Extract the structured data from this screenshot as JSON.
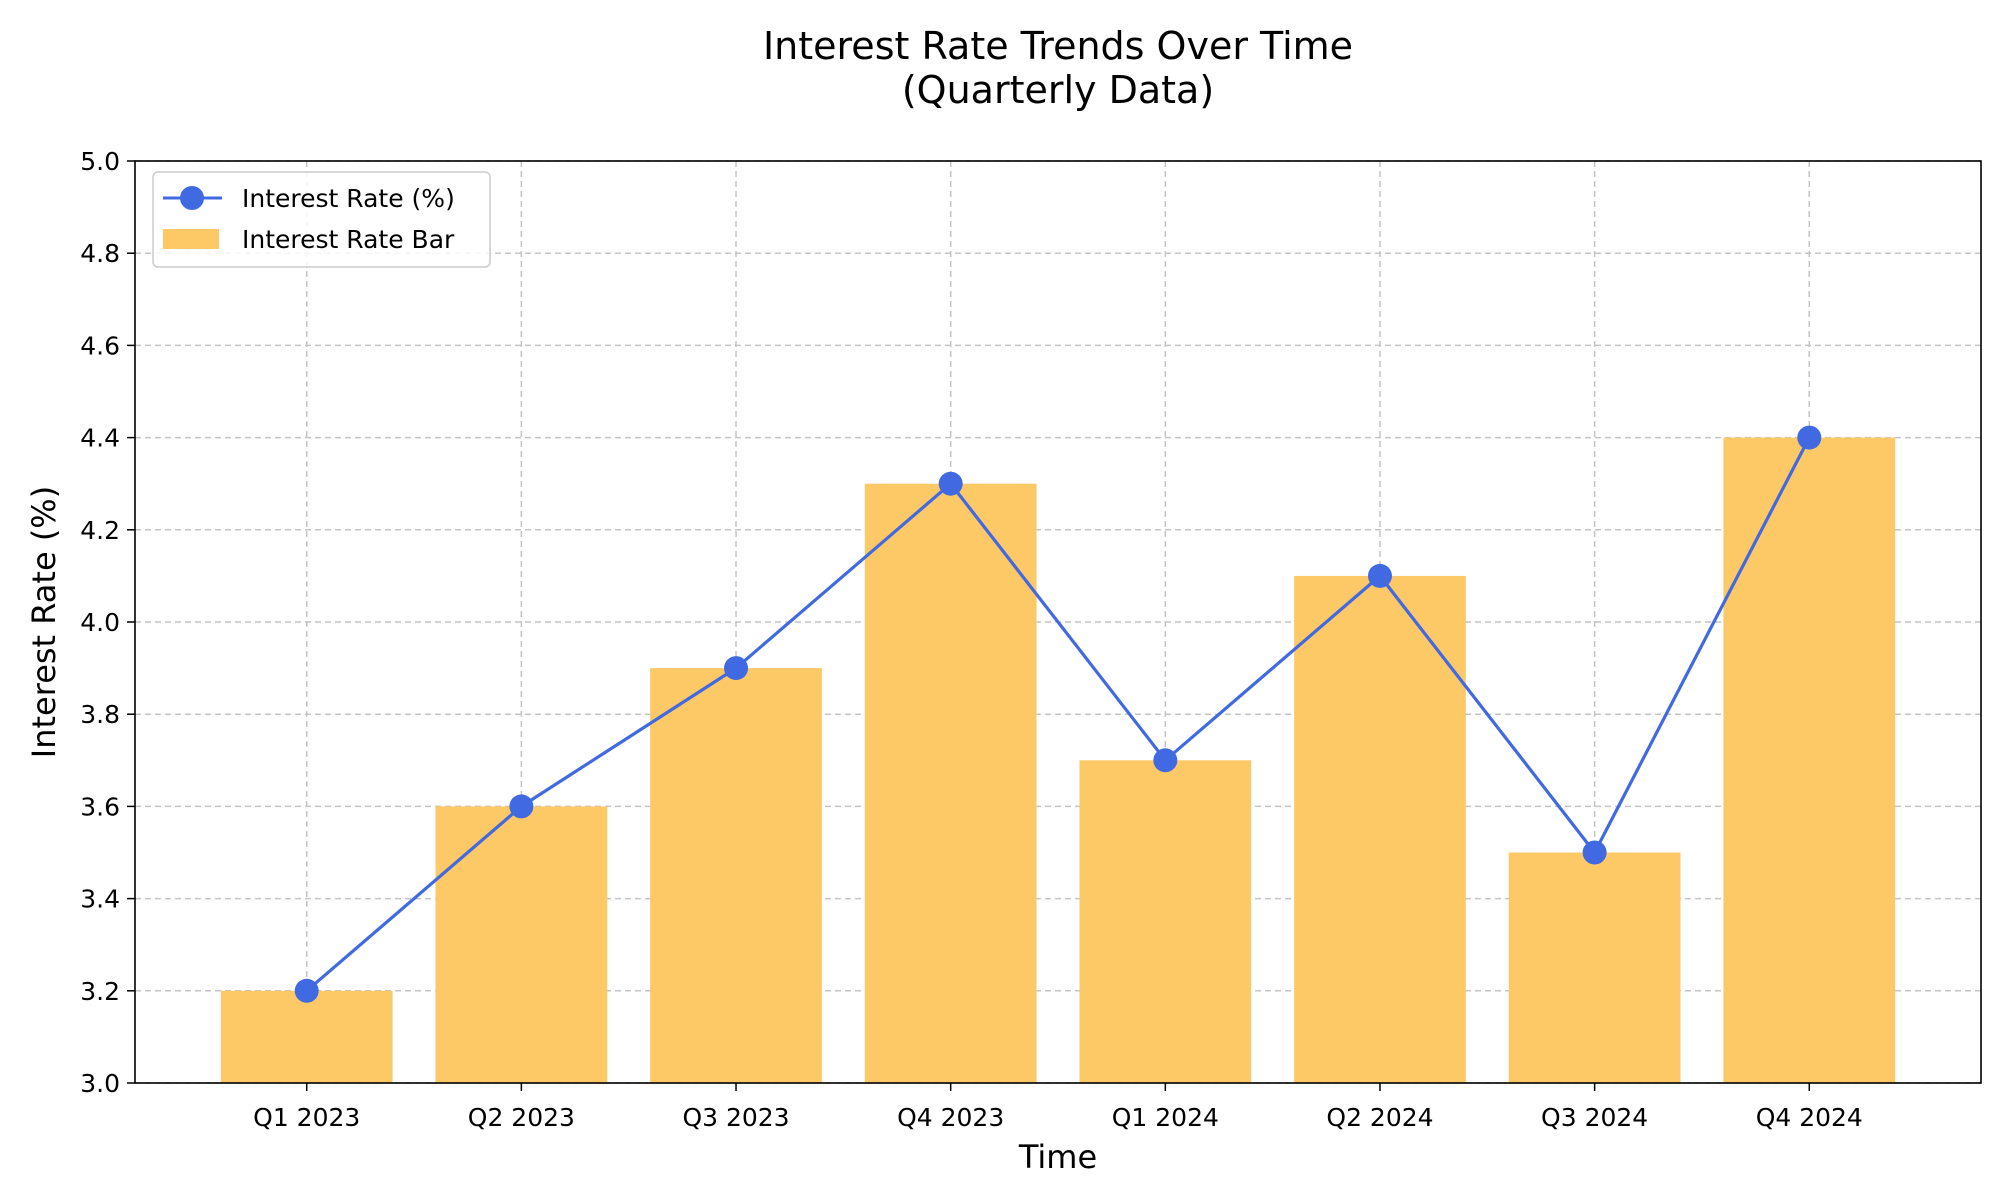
{
  "chart_data": {
    "type": "bar",
    "title": "Interest Rate Trends Over Time",
    "subtitle": "(Quarterly Data)",
    "xlabel": "Time",
    "ylabel": "Interest Rate (%)",
    "categories": [
      "Q1 2023",
      "Q2 2023",
      "Q3 2023",
      "Q4 2023",
      "Q1 2024",
      "Q2 2024",
      "Q3 2024",
      "Q4 2024"
    ],
    "series": [
      {
        "name": "Interest Rate (%)",
        "kind": "line",
        "values": [
          3.2,
          3.6,
          3.9,
          4.3,
          3.7,
          4.1,
          3.5,
          4.4
        ]
      },
      {
        "name": "Interest Rate Bar",
        "kind": "bar",
        "values": [
          3.2,
          3.6,
          3.9,
          4.3,
          3.7,
          4.1,
          3.5,
          4.4
        ]
      }
    ],
    "ylim": [
      3.0,
      5.0
    ],
    "yticks": [
      3.0,
      3.2,
      3.4,
      3.6,
      3.8,
      4.0,
      4.2,
      4.4,
      4.6,
      4.8,
      5.0
    ],
    "ytick_labels": [
      "3.0",
      "3.2",
      "3.4",
      "3.6",
      "3.8",
      "4.0",
      "4.2",
      "4.4",
      "4.6",
      "4.8",
      "5.0"
    ],
    "grid": true,
    "legend_position": "top-left",
    "colors": {
      "line": "#4169e1",
      "bar": "#fdc966",
      "grid": "#c4c4c4"
    }
  }
}
